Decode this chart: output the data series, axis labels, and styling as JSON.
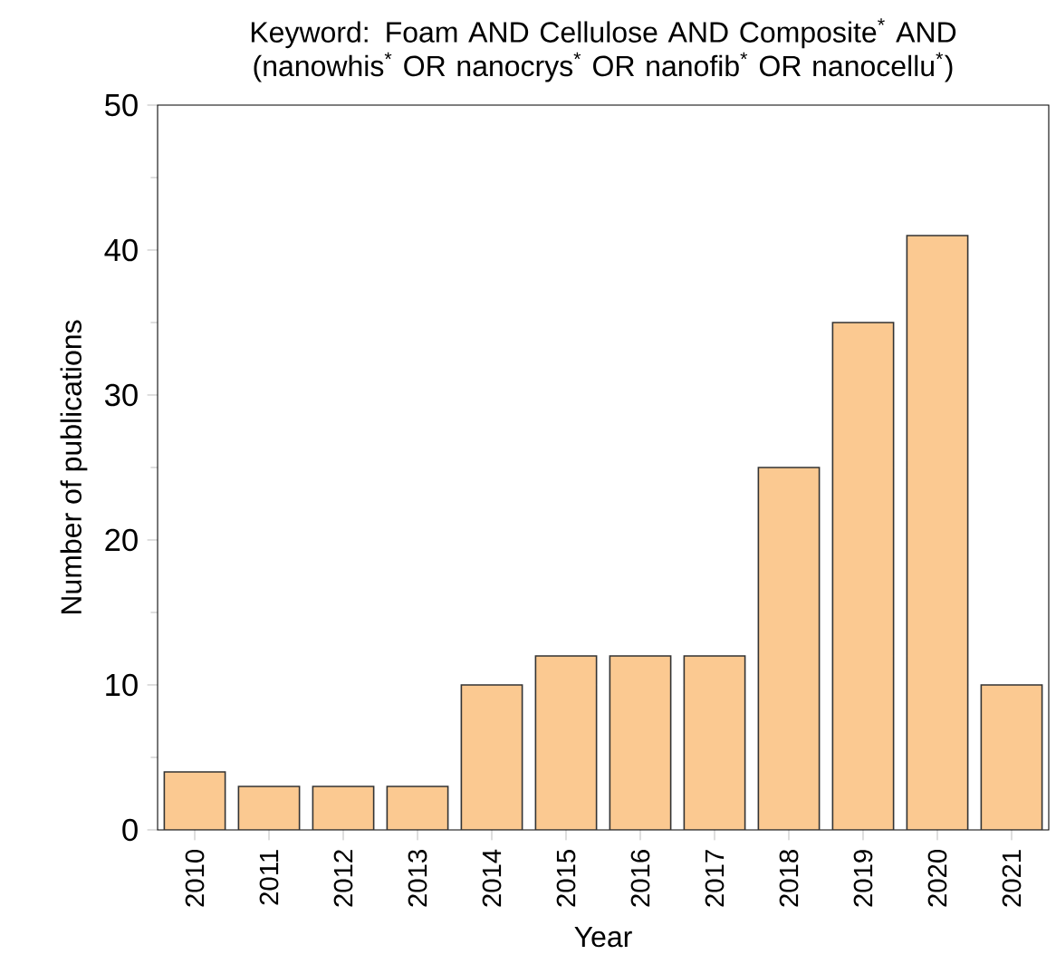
{
  "chart_data": {
    "type": "bar",
    "title": "Keyword: Foam AND Cellulose AND Composite$^{*}$ AND (nanowhis$^{*}$ OR nanocrys$^{*}$ OR nanofib$^{*}$ OR nanocellu$^{*}$)",
    "xlabel": "Year",
    "ylabel": "Number of publications",
    "categories": [
      "2010",
      "2011",
      "2012",
      "2013",
      "2014",
      "2015",
      "2016",
      "2017",
      "2018",
      "2019",
      "2020",
      "2021"
    ],
    "values": [
      4,
      3,
      3,
      3,
      10,
      12,
      12,
      12,
      25,
      35,
      41,
      10
    ],
    "color": "#fbc991",
    "ylim": [
      0,
      50
    ],
    "yticks": [
      0,
      10,
      20,
      30,
      40,
      50
    ]
  }
}
